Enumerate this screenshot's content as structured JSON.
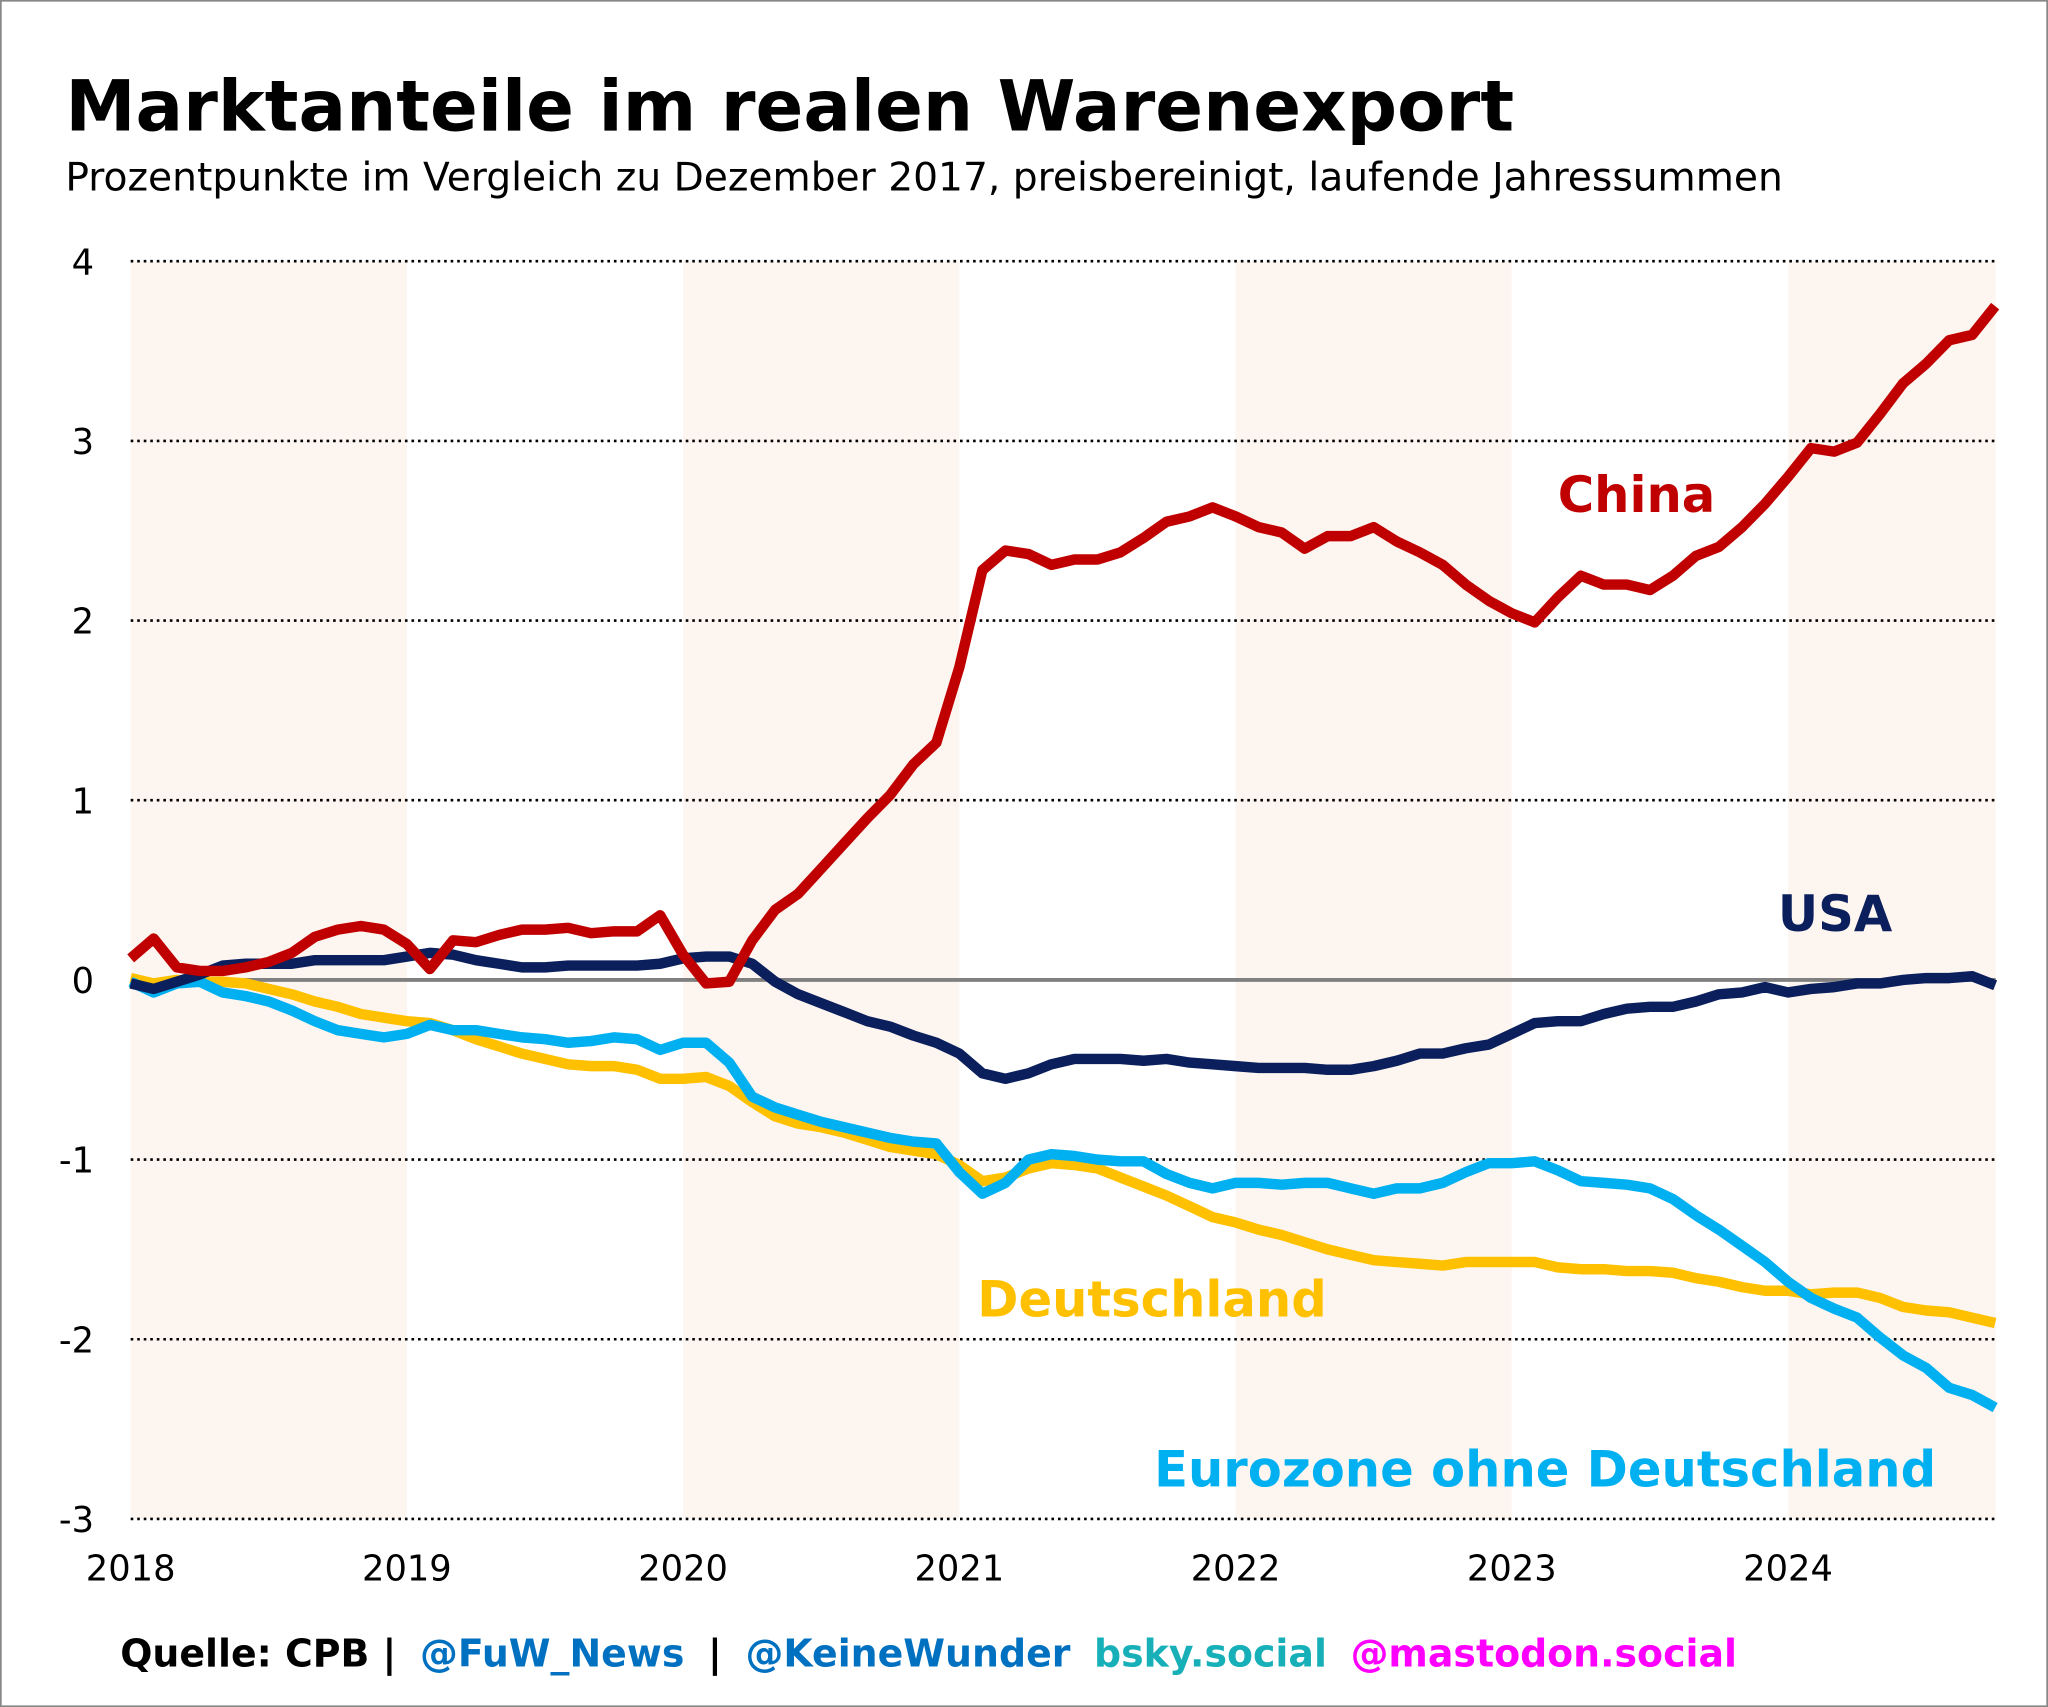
{
  "chart_data": {
    "type": "line",
    "title": "Marktanteile im realen Warenexport",
    "subtitle": "Prozentpunkte im Vergleich zu Dezember 2017, preisbereinigt, laufende Jahressummen",
    "xlabel": "",
    "ylabel": "",
    "x_start": "2018-01",
    "x_end": "2024-10",
    "x_frequency": "monthly",
    "x_ticks": [
      "2018",
      "2019",
      "2020",
      "2021",
      "2022",
      "2023",
      "2024"
    ],
    "y_ticks": [
      "4",
      "3",
      "2",
      "1",
      "0",
      "-1",
      "-2",
      "-3"
    ],
    "ylim": [
      -3,
      4
    ],
    "grid": "horizontal dotted",
    "shaded_years": [
      "2018",
      "2020",
      "2022",
      "2024"
    ],
    "zero_line_color": "#808080",
    "shade_color": "#fdf5f0",
    "series": [
      {
        "name": "China",
        "color": "#c00000",
        "values": [
          0.12,
          0.23,
          0.07,
          0.05,
          0.05,
          0.07,
          0.1,
          0.15,
          0.24,
          0.28,
          0.3,
          0.28,
          0.2,
          0.06,
          0.22,
          0.21,
          0.25,
          0.28,
          0.28,
          0.29,
          0.26,
          0.27,
          0.27,
          0.36,
          0.14,
          -0.02,
          -0.01,
          0.22,
          0.39,
          0.48,
          0.62,
          0.76,
          0.9,
          1.03,
          1.2,
          1.32,
          1.74,
          2.28,
          2.39,
          2.37,
          2.31,
          2.34,
          2.34,
          2.38,
          2.46,
          2.55,
          2.58,
          2.63,
          2.58,
          2.52,
          2.49,
          2.4,
          2.47,
          2.47,
          2.52,
          2.44,
          2.38,
          2.31,
          2.2,
          2.11,
          2.04,
          1.99,
          2.13,
          2.25,
          2.2,
          2.2,
          2.17,
          2.25,
          2.36,
          2.41,
          2.52,
          2.65,
          2.8,
          2.96,
          2.94,
          2.99,
          3.15,
          3.32,
          3.43,
          3.56,
          3.59,
          3.75
        ]
      },
      {
        "name": "USA",
        "color": "#0a1f5c",
        "values": [
          -0.02,
          -0.05,
          -0.01,
          0.03,
          0.08,
          0.09,
          0.09,
          0.09,
          0.11,
          0.11,
          0.11,
          0.11,
          0.13,
          0.15,
          0.14,
          0.11,
          0.09,
          0.07,
          0.07,
          0.08,
          0.08,
          0.08,
          0.08,
          0.09,
          0.12,
          0.13,
          0.13,
          0.09,
          -0.01,
          -0.08,
          -0.13,
          -0.18,
          -0.23,
          -0.26,
          -0.31,
          -0.35,
          -0.41,
          -0.52,
          -0.55,
          -0.52,
          -0.47,
          -0.44,
          -0.44,
          -0.44,
          -0.45,
          -0.44,
          -0.46,
          -0.47,
          -0.48,
          -0.49,
          -0.49,
          -0.49,
          -0.5,
          -0.5,
          -0.48,
          -0.45,
          -0.41,
          -0.41,
          -0.38,
          -0.36,
          -0.3,
          -0.24,
          -0.23,
          -0.23,
          -0.19,
          -0.16,
          -0.15,
          -0.15,
          -0.12,
          -0.08,
          -0.07,
          -0.04,
          -0.07,
          -0.05,
          -0.04,
          -0.02,
          -0.02,
          0.0,
          0.01,
          0.01,
          0.02,
          -0.03
        ]
      },
      {
        "name": "Deutschland",
        "color": "#ffc000",
        "values": [
          0.01,
          -0.02,
          0.0,
          -0.01,
          -0.01,
          -0.02,
          -0.05,
          -0.08,
          -0.12,
          -0.15,
          -0.19,
          -0.21,
          -0.23,
          -0.24,
          -0.28,
          -0.33,
          -0.37,
          -0.41,
          -0.44,
          -0.47,
          -0.48,
          -0.48,
          -0.5,
          -0.55,
          -0.55,
          -0.54,
          -0.59,
          -0.68,
          -0.76,
          -0.8,
          -0.82,
          -0.85,
          -0.89,
          -0.93,
          -0.95,
          -0.97,
          -1.03,
          -1.12,
          -1.1,
          -1.05,
          -1.02,
          -1.03,
          -1.05,
          -1.1,
          -1.15,
          -1.2,
          -1.26,
          -1.32,
          -1.35,
          -1.39,
          -1.42,
          -1.46,
          -1.5,
          -1.53,
          -1.56,
          -1.57,
          -1.58,
          -1.59,
          -1.57,
          -1.57,
          -1.57,
          -1.57,
          -1.6,
          -1.61,
          -1.61,
          -1.62,
          -1.62,
          -1.63,
          -1.66,
          -1.68,
          -1.71,
          -1.73,
          -1.73,
          -1.75,
          -1.74,
          -1.74,
          -1.77,
          -1.82,
          -1.84,
          -1.85,
          -1.88,
          -1.91
        ]
      },
      {
        "name": "Eurozone ohne Deutschland",
        "color": "#00b0f0",
        "values": [
          -0.01,
          -0.07,
          -0.02,
          -0.01,
          -0.07,
          -0.09,
          -0.12,
          -0.17,
          -0.23,
          -0.28,
          -0.3,
          -0.32,
          -0.3,
          -0.25,
          -0.28,
          -0.28,
          -0.3,
          -0.32,
          -0.33,
          -0.35,
          -0.34,
          -0.32,
          -0.33,
          -0.39,
          -0.35,
          -0.35,
          -0.46,
          -0.65,
          -0.71,
          -0.75,
          -0.79,
          -0.82,
          -0.85,
          -0.88,
          -0.9,
          -0.91,
          -1.07,
          -1.19,
          -1.13,
          -1.0,
          -0.97,
          -0.98,
          -1.0,
          -1.01,
          -1.01,
          -1.08,
          -1.13,
          -1.16,
          -1.13,
          -1.13,
          -1.14,
          -1.13,
          -1.13,
          -1.16,
          -1.19,
          -1.16,
          -1.16,
          -1.13,
          -1.07,
          -1.02,
          -1.02,
          -1.01,
          -1.06,
          -1.12,
          -1.13,
          -1.14,
          -1.16,
          -1.22,
          -1.31,
          -1.39,
          -1.48,
          -1.57,
          -1.68,
          -1.77,
          -1.83,
          -1.88,
          -1.99,
          -2.09,
          -2.16,
          -2.27,
          -2.31,
          -2.38
        ]
      }
    ]
  },
  "footer": {
    "source": "Quelle: CPB |",
    "handle1": "@FuW_News",
    "sep": "|",
    "handle2": "@KeineWunder",
    "bsky": "bsky.social",
    "mastodon": "@mastodon.social",
    "colors": {
      "source": "#000000",
      "handles": "#0070c0",
      "bsky": "#17b0b8",
      "mastodon": "#ff00ff"
    }
  }
}
